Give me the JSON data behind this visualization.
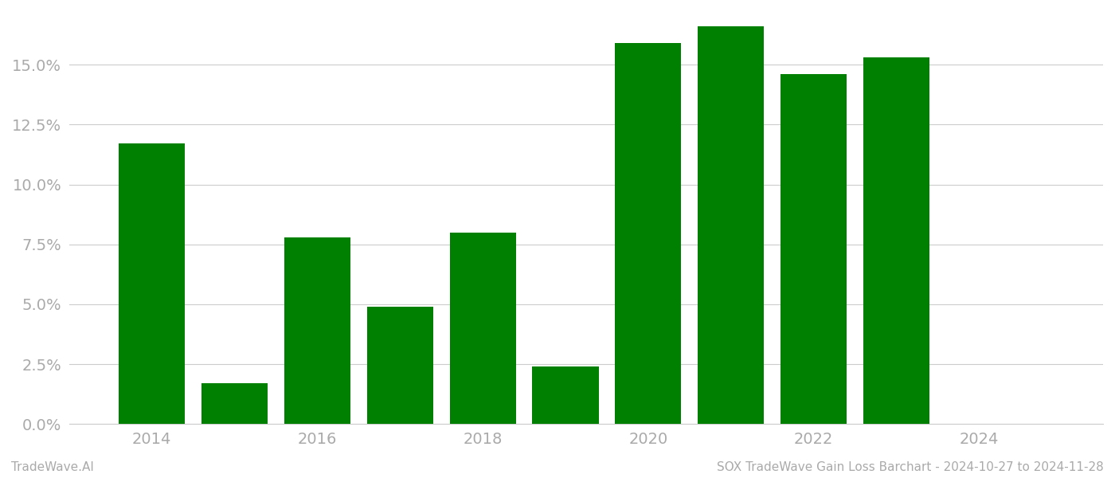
{
  "years": [
    2014,
    2015,
    2016,
    2017,
    2018,
    2019,
    2020,
    2021,
    2022,
    2023
  ],
  "values": [
    0.117,
    0.017,
    0.078,
    0.049,
    0.08,
    0.024,
    0.159,
    0.166,
    0.146,
    0.153
  ],
  "bar_color": "#008000",
  "background_color": "#ffffff",
  "grid_color": "#cccccc",
  "footer_left": "TradeWave.AI",
  "footer_right": "SOX TradeWave Gain Loss Barchart - 2024-10-27 to 2024-11-28",
  "footer_color": "#aaaaaa",
  "tick_color": "#aaaaaa",
  "ylim": [
    0,
    0.172
  ],
  "yticks": [
    0.0,
    0.025,
    0.05,
    0.075,
    0.1,
    0.125,
    0.15
  ],
  "ytick_labels": [
    "0.0%",
    "2.5%",
    "5.0%",
    "7.5%",
    "10.0%",
    "12.5%",
    "15.0%"
  ],
  "xtick_labels": [
    "2014",
    "2016",
    "2018",
    "2020",
    "2022",
    "2024"
  ],
  "xtick_positions": [
    2014,
    2016,
    2018,
    2020,
    2022,
    2024
  ],
  "xlim": [
    2013.0,
    2025.5
  ],
  "bar_width": 0.8
}
